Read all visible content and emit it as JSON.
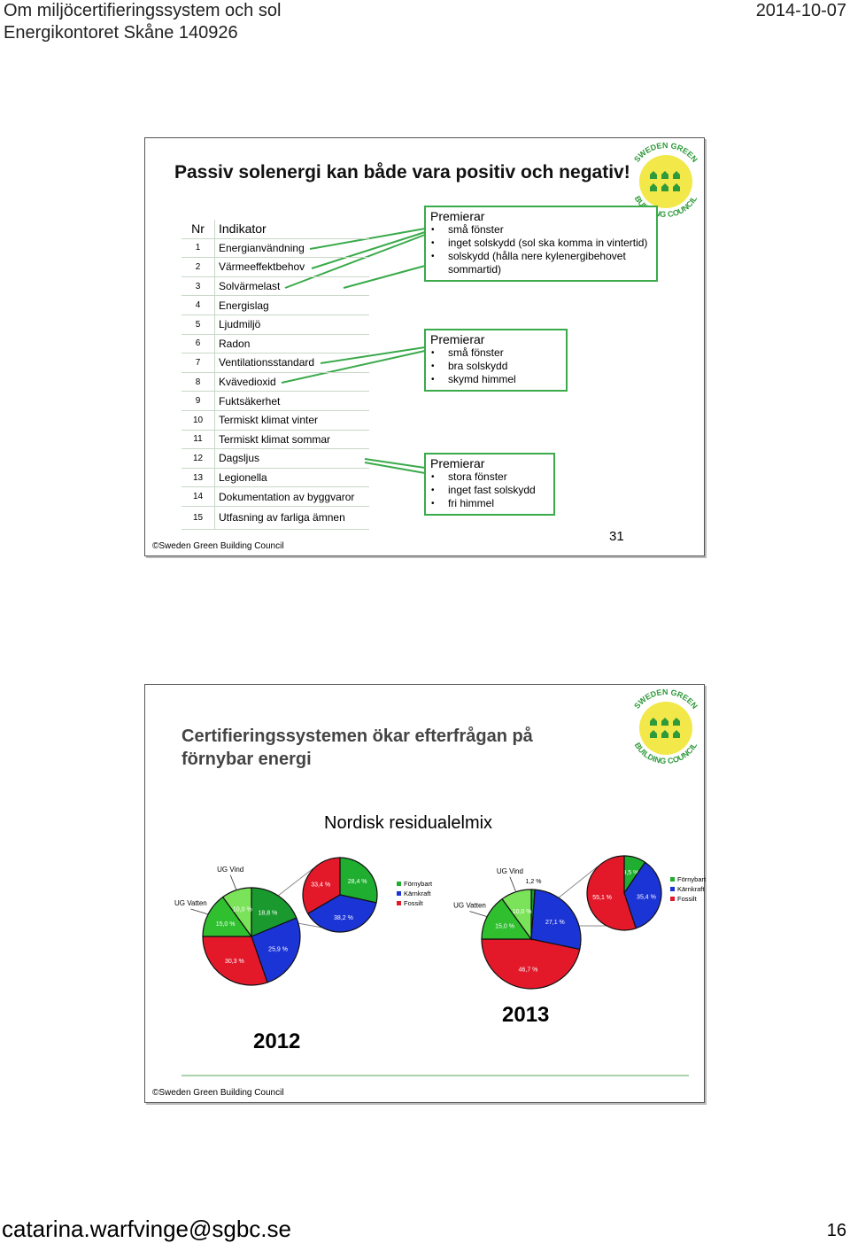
{
  "header": {
    "title_line1": "Om miljöcertifieringssystem och sol",
    "title_line2": "Energikontoret Skåne 140926",
    "date": "2014-10-07"
  },
  "logo": {
    "top": "SWEDEN GREEN",
    "bottom": "BUILDING COUNCIL"
  },
  "slide1": {
    "title": "Passiv solenergi kan både vara positiv och negativ!",
    "table": {
      "columns": [
        "Nr",
        "Indikator"
      ],
      "rows": [
        [
          "1",
          "Energianvändning"
        ],
        [
          "2",
          "Värmeeffektbehov"
        ],
        [
          "3",
          "Solvärmelast"
        ],
        [
          "4",
          "Energislag"
        ],
        [
          "5",
          "Ljudmiljö"
        ],
        [
          "6",
          "Radon"
        ],
        [
          "7",
          "Ventilationsstandard"
        ],
        [
          "8",
          "Kvävedioxid"
        ],
        [
          "9",
          "Fuktsäkerhet"
        ],
        [
          "10",
          "Termiskt klimat vinter"
        ],
        [
          "11",
          "Termiskt klimat sommar"
        ],
        [
          "12",
          "Dagsljus"
        ],
        [
          "13",
          "Legionella"
        ],
        [
          "14",
          "Dokumentation av byggvaror"
        ],
        [
          "15",
          "Utfasning av farliga ämnen"
        ]
      ]
    },
    "callouts": [
      {
        "heading": "Premierar",
        "items": [
          "små fönster",
          "inget solskydd (sol ska komma in vintertid)",
          "solskydd (hålla nere kylenergibehovet sommartid)"
        ]
      },
      {
        "heading": "Premierar",
        "items": [
          "små fönster",
          "bra solskydd",
          "skymd himmel"
        ]
      },
      {
        "heading": "Premierar",
        "items": [
          "stora fönster",
          "inget fast solskydd",
          "fri himmel"
        ]
      }
    ],
    "footer": "©Sweden Green Building Council",
    "page_number": "31"
  },
  "slide2": {
    "title_line1": "Certifieringssystemen ökar efterfrågan på",
    "title_line2": "förnybar energi",
    "subtitle": "Nordisk residualelmix",
    "charts": [
      {
        "year": "2012",
        "main": {
          "type": "pie",
          "categories": [
            null,
            null,
            null,
            "UG Vatten",
            "UG Vind"
          ],
          "values": [
            18.8,
            25.9,
            30.3,
            15.0,
            10.0
          ],
          "value_labels": [
            "18,8 %",
            "25,9 %",
            "30,3 %",
            "15,0 %",
            "10,0 %"
          ],
          "colors": [
            "#1a9a2e",
            "#1b34d6",
            "#e3192a",
            "#2fbf2f",
            "#7be35a"
          ]
        },
        "mix": {
          "type": "pie",
          "categories": [
            "Förnybart",
            "Kärnkraft",
            "Fossilt"
          ],
          "values": [
            28.4,
            38.2,
            33.4
          ],
          "value_labels": [
            "28,4 %",
            "38,2 %",
            "33,4 %"
          ],
          "colors": [
            "#1fae2f",
            "#1b34d6",
            "#e3192a"
          ]
        }
      },
      {
        "year": "2013",
        "main": {
          "type": "pie",
          "categories": [
            null,
            null,
            null,
            "UG Vatten",
            "UG Vind"
          ],
          "values": [
            1.2,
            27.1,
            46.7,
            15.0,
            10.0
          ],
          "value_labels": [
            "1,2 %",
            "27,1 %",
            "46,7 %",
            "15,0 %",
            "10,0 %"
          ],
          "colors": [
            "#1a9a2e",
            "#1b34d6",
            "#e3192a",
            "#2fbf2f",
            "#7be35a"
          ]
        },
        "mix": {
          "type": "pie",
          "categories": [
            "Förnybart",
            "Kärnkraft",
            "Fossilt"
          ],
          "values": [
            9.5,
            35.4,
            55.1
          ],
          "value_labels": [
            "9,5 %",
            "35,4 %",
            "55,1 %"
          ],
          "colors": [
            "#1fae2f",
            "#1b34d6",
            "#e3192a"
          ]
        }
      }
    ],
    "footer": "©Sweden Green Building Council"
  },
  "footer": {
    "email": "catarina.warfvinge@sgbc.se",
    "page": "16"
  }
}
